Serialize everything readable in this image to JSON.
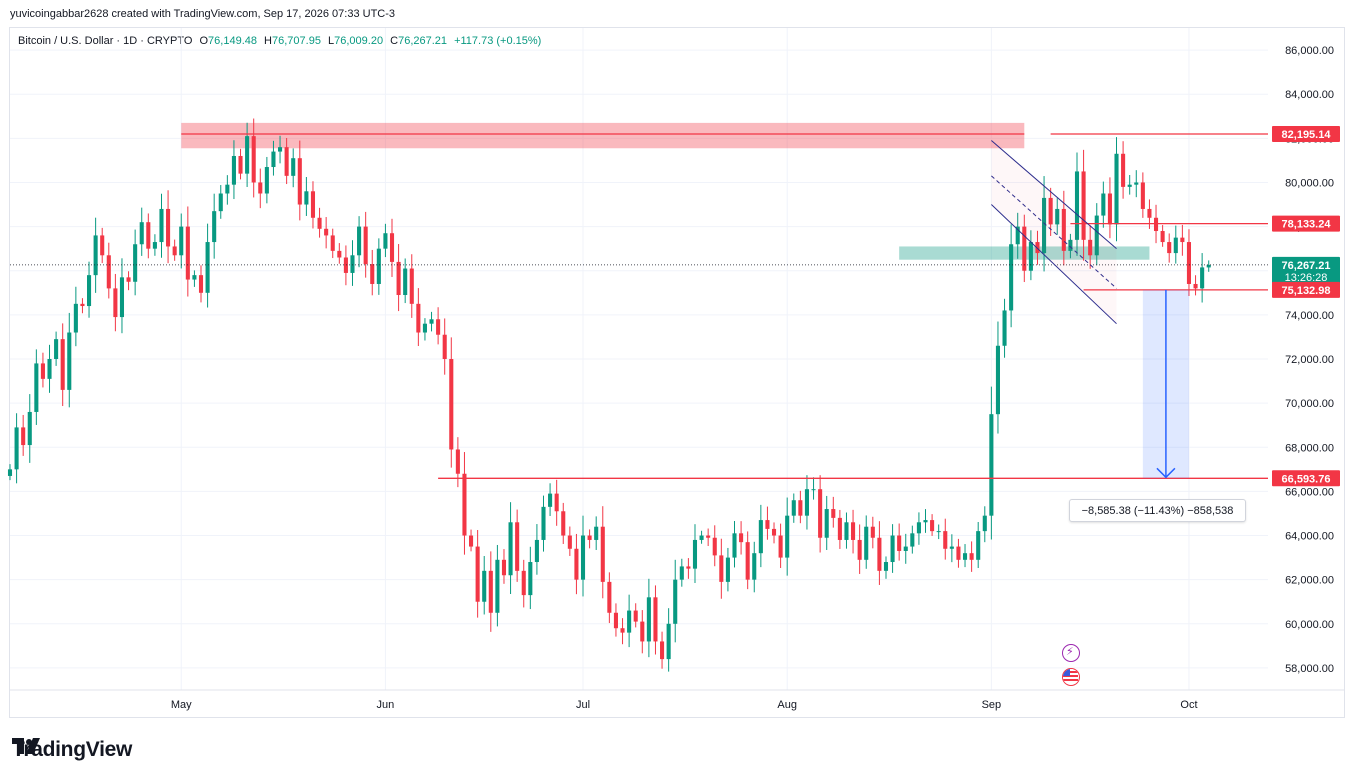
{
  "credit": "yuvicoingabbar2628 created with TradingView.com, Sep 17, 2026 07:33 UTC-3",
  "legend": {
    "symbol": "Bitcoin / U.S. Dollar · 1D · CRYPTO",
    "o_label": "O",
    "o": "76,149.48",
    "h_label": "H",
    "h": "76,707.95",
    "l_label": "L",
    "l": "76,009.20",
    "c_label": "C",
    "c": "76,267.21",
    "change": "+117.73 (+0.15%)"
  },
  "brand": "TradingView",
  "measure_label": "−8,585.38 (−11.43%) −858,538",
  "colors": {
    "up": "#089981",
    "down": "#f23645",
    "grid": "#f0f3fa",
    "accent": "#2962ff"
  },
  "chart_data": {
    "type": "candlestick",
    "y_axis": {
      "min": 57000,
      "max": 87000,
      "ticks": [
        "58,000.00",
        "60,000.00",
        "62,000.00",
        "64,000.00",
        "66,000.00",
        "68,000.00",
        "70,000.00",
        "72,000.00",
        "74,000.00",
        "76,000.00",
        "78,000.00",
        "80,000.00",
        "82,000.00",
        "84,000.00",
        "86,000.00"
      ]
    },
    "x_axis": {
      "start": "2026-04-05",
      "end": "2026-10-13",
      "labels": [
        {
          "date": "2026-05-01",
          "text": "May"
        },
        {
          "date": "2026-06-01",
          "text": "Jun"
        },
        {
          "date": "2026-07-01",
          "text": "Jul"
        },
        {
          "date": "2026-08-01",
          "text": "Aug"
        },
        {
          "date": "2026-09-01",
          "text": "Sep"
        },
        {
          "date": "2026-10-01",
          "text": "Oct"
        }
      ]
    },
    "price_tags": [
      {
        "text": "82,195.14",
        "value": 82195.14,
        "color": "#f23645"
      },
      {
        "text": "78,133.24",
        "value": 78133.24,
        "color": "#f23645"
      },
      {
        "text": "76,267.21",
        "value": 76267.21,
        "sub": "13:26:28",
        "color": "#089981"
      },
      {
        "text": "75,132.98",
        "value": 75132.98,
        "color": "#f23645"
      },
      {
        "text": "66,593.76",
        "value": 66593.76,
        "color": "#f23645"
      }
    ],
    "first_date": "2026-04-05",
    "closes": [
      67000,
      68900,
      68100,
      69600,
      71800,
      71100,
      72000,
      72900,
      70600,
      73200,
      74500,
      74400,
      75800,
      77600,
      76700,
      75200,
      73900,
      75700,
      75500,
      77200,
      78200,
      77000,
      77300,
      78800,
      77100,
      76700,
      78000,
      75600,
      75800,
      75000,
      77300,
      78700,
      79500,
      79900,
      81200,
      80400,
      82100,
      80000,
      79500,
      80700,
      81400,
      81600,
      80300,
      81100,
      79000,
      79600,
      78400,
      77900,
      77600,
      76900,
      76600,
      75900,
      76700,
      78000,
      76300,
      75400,
      77000,
      77700,
      76400,
      74900,
      76100,
      74500,
      73200,
      73600,
      73800,
      73100,
      72000,
      67900,
      66800,
      64000,
      63500,
      61000,
      62400,
      60500,
      62900,
      62200,
      64600,
      62400,
      61300,
      62800,
      63800,
      65300,
      65900,
      65100,
      64000,
      63400,
      62000,
      64000,
      63800,
      64400,
      61900,
      60500,
      59800,
      59600,
      60600,
      60100,
      59200,
      61200,
      59200,
      58400,
      60000,
      62000,
      62600,
      62500,
      63800,
      64000,
      63900,
      63100,
      61900,
      63000,
      64100,
      63700,
      62000,
      63200,
      64700,
      64300,
      64000,
      63000,
      64900,
      65600,
      64900,
      66100,
      66100,
      63900,
      65200,
      64800,
      63800,
      64600,
      63800,
      62900,
      64400,
      63900,
      62400,
      62800,
      64000,
      63300,
      63500,
      64100,
      64600,
      64700,
      64200,
      64200,
      63400,
      63500,
      62900,
      63200,
      62900,
      64200,
      64900,
      69500,
      72600,
      74200,
      77200,
      78000,
      76000,
      77300,
      76800,
      79300,
      78100,
      78800,
      76900,
      77400,
      80500,
      77400,
      76700,
      78500,
      79500,
      78100,
      81300,
      79800,
      79900,
      80000,
      78800,
      78400,
      77800,
      77300,
      76800,
      77500,
      77300,
      75400,
      75200,
      76150,
      76267
    ],
    "zones": [
      {
        "from": "2026-05-01",
        "to": "2026-09-06",
        "y1": 81550,
        "y2": 82700,
        "color": "#f23645"
      },
      {
        "from": "2026-08-18",
        "to": "2026-09-25",
        "y1": 76500,
        "y2": 77100,
        "color": "#089981"
      }
    ],
    "lines": [
      {
        "from": "2026-05-01",
        "to": "2026-09-06",
        "value": 82195.14
      },
      {
        "from": "2026-09-10",
        "to": "2026-10-13",
        "value": 82195.14
      },
      {
        "from": "2026-09-13",
        "to": "2026-10-13",
        "value": 78133.24
      },
      {
        "from": "2026-09-15",
        "to": "2026-10-13",
        "value": 75132.98
      },
      {
        "from": "2026-06-09",
        "to": "2026-10-13",
        "value": 66593.76
      }
    ],
    "channel": {
      "upper": [
        {
          "date": "2026-09-01",
          "value": 81900
        },
        {
          "date": "2026-09-20",
          "value": 77000
        }
      ],
      "lower": [
        {
          "date": "2026-09-01",
          "value": 79000
        },
        {
          "date": "2026-09-20",
          "value": 73600
        }
      ],
      "mid": [
        {
          "date": "2026-09-01",
          "value": 80300
        },
        {
          "date": "2026-09-20",
          "value": 75200
        }
      ]
    },
    "projection": {
      "from": "2026-09-24",
      "to": "2026-10-01",
      "top": 75132.98,
      "bottom": 66593.76
    }
  }
}
